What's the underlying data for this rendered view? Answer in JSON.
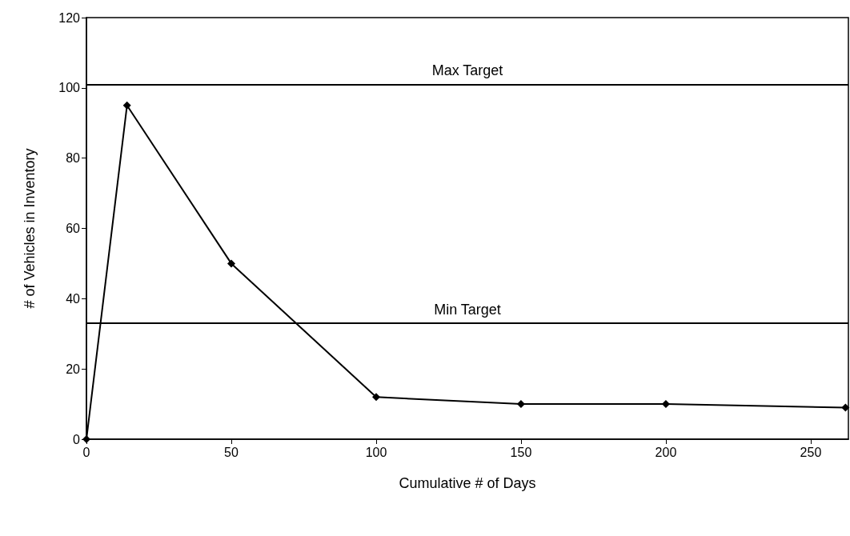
{
  "chart_data": {
    "type": "line",
    "xlabel": "Cumulative # of Days",
    "ylabel": "# of Vehicles in Inventory",
    "x": [
      0,
      14,
      50,
      100,
      150,
      200,
      262
    ],
    "series": [
      {
        "color": "#000000",
        "values": [
          0,
          95,
          50,
          12,
          10,
          10,
          9
        ]
      }
    ],
    "xlim": [
      0,
      263
    ],
    "xticks": [
      0,
      50,
      100,
      150,
      200,
      250
    ],
    "ylim": [
      0,
      120
    ],
    "yticks": [
      0,
      20,
      40,
      60,
      80,
      100,
      120
    ],
    "ref_lines": [
      {
        "axis": "y",
        "value": 101,
        "label": "Max Target",
        "color": "#000000"
      },
      {
        "axis": "y",
        "value": 33,
        "label": "Min Target",
        "color": "#000000"
      }
    ],
    "marker": "diamond",
    "line_style": "solid",
    "grid": false
  }
}
